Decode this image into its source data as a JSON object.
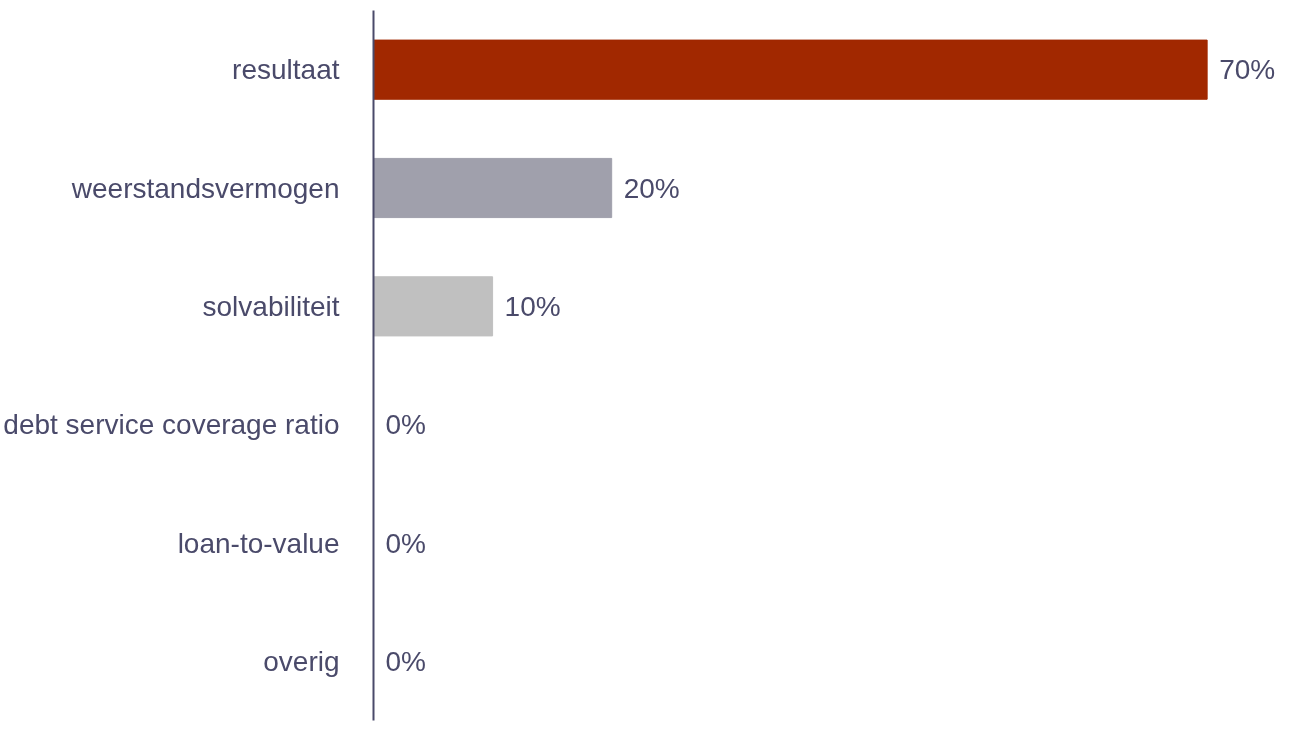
{
  "chart_data": {
    "type": "bar",
    "orientation": "horizontal",
    "categories": [
      "resultaat",
      "weerstandsvermogen",
      "solvabiliteit",
      "debt service coverage ratio",
      "loan-to-value",
      "overig"
    ],
    "values": [
      70,
      20,
      10,
      0,
      0,
      0
    ],
    "colors": [
      "#a12800",
      "#a0a0ac",
      "#c0c0c0",
      "#c0c0c0",
      "#c0c0c0",
      "#c0c0c0"
    ],
    "value_labels": [
      "70%",
      "20%",
      "10%",
      "0%",
      "0%",
      "0%"
    ]
  }
}
